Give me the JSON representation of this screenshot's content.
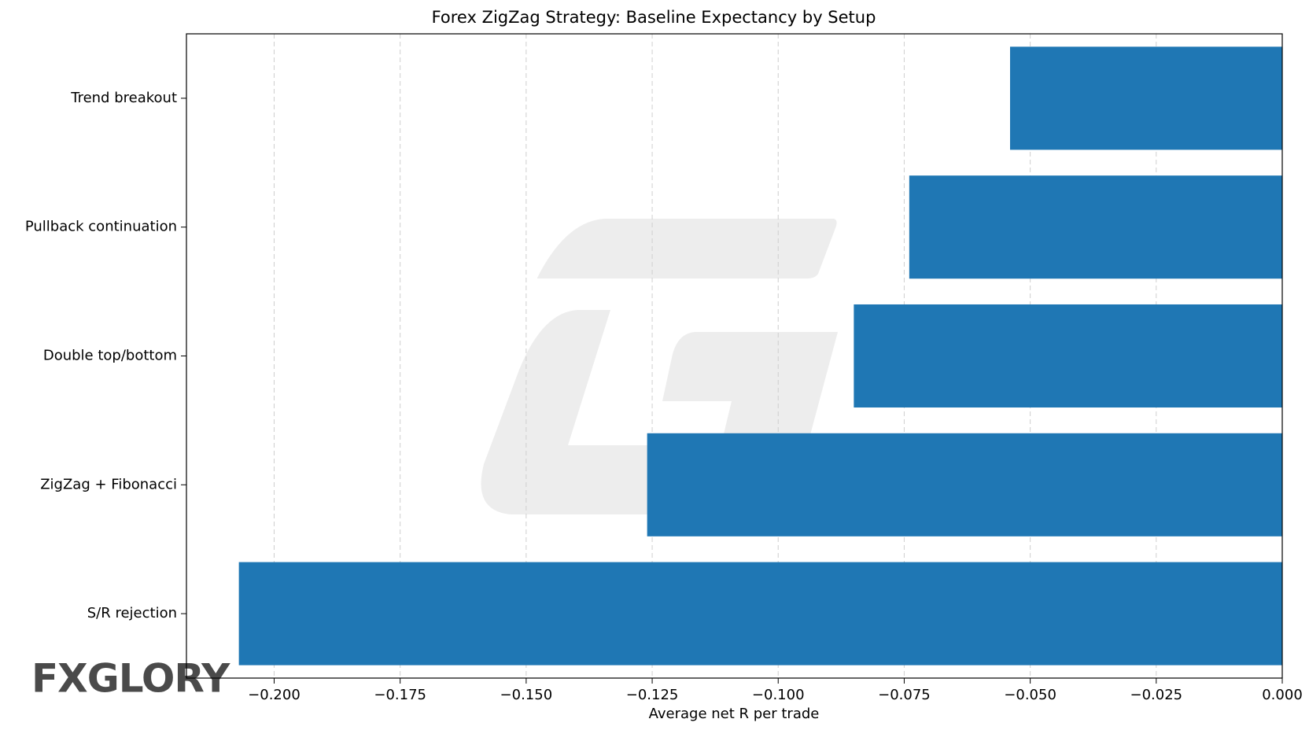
{
  "chart_data": {
    "type": "barh",
    "title": "Forex ZigZag Strategy: Baseline Expectancy by Setup",
    "x_label": "Average net R per trade",
    "categories": [
      "Trend breakout",
      "Pullback continuation",
      "Double top/bottom",
      "ZigZag + Fibonacci",
      "S/R rejection"
    ],
    "values": [
      -0.054,
      -0.074,
      -0.085,
      -0.126,
      -0.207
    ],
    "color": "#1f77b4",
    "xlim": [
      -0.2174,
      0
    ],
    "xticks": [
      {
        "value": -0.2,
        "label": "−0.200"
      },
      {
        "value": -0.175,
        "label": "−0.175"
      },
      {
        "value": -0.15,
        "label": "−0.150"
      },
      {
        "value": -0.125,
        "label": "−0.125"
      },
      {
        "value": -0.1,
        "label": "−0.100"
      },
      {
        "value": -0.075,
        "label": "−0.075"
      },
      {
        "value": -0.05,
        "label": "−0.050"
      },
      {
        "value": -0.025,
        "label": "−0.025"
      },
      {
        "value": 0,
        "label": "0.000"
      }
    ],
    "grid": true
  },
  "logo": "FXGLORY"
}
